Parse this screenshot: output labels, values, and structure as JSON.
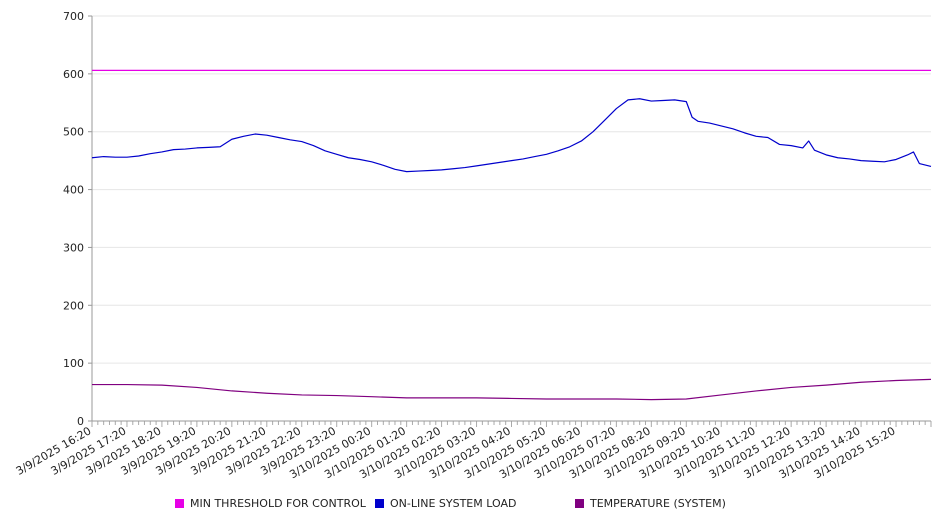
{
  "chart_data": {
    "type": "line",
    "title": "",
    "xlabel": "",
    "ylabel": "",
    "ylim": [
      0,
      700
    ],
    "yticks": [
      0,
      100,
      200,
      300,
      400,
      500,
      600,
      700
    ],
    "grid": true,
    "legend_position": "bottom",
    "x_start": "3/9/2025 16:20",
    "x_end": "3/10/2025 16:20",
    "x_tick_labels": [
      "3/9/2025 16:20",
      "3/9/2025 17:20",
      "3/9/2025 18:20",
      "3/9/2025 19:20",
      "3/9/2025 20:20",
      "3/9/2025 21:20",
      "3/9/2025 22:20",
      "3/9/2025 23:20",
      "3/10/2025 00:20",
      "3/10/2025 01:20",
      "3/10/2025 02:20",
      "3/10/2025 03:20",
      "3/10/2025 04:20",
      "3/10/2025 05:20",
      "3/10/2025 06:20",
      "3/10/2025 07:20",
      "3/10/2025 08:20",
      "3/10/2025 09:20",
      "3/10/2025 10:20",
      "3/10/2025 11:20",
      "3/10/2025 12:20",
      "3/10/2025 13:20",
      "3/10/2025 14:20",
      "3/10/2025 15:20"
    ],
    "series": [
      {
        "name": "MIN THRESHOLD FOR CONTROL",
        "color": "#e600e6",
        "points": [
          [
            "3/9/2025 16:20",
            606
          ],
          [
            "3/10/2025 16:20",
            606
          ]
        ]
      },
      {
        "name": "ON-LINE SYSTEM LOAD",
        "color": "#0000cc",
        "points": [
          [
            "3/9/2025 16:20",
            455
          ],
          [
            "3/9/2025 16:40",
            457
          ],
          [
            "3/9/2025 17:00",
            456
          ],
          [
            "3/9/2025 17:20",
            456
          ],
          [
            "3/9/2025 17:40",
            458
          ],
          [
            "3/9/2025 18:00",
            462
          ],
          [
            "3/9/2025 18:20",
            465
          ],
          [
            "3/9/2025 18:40",
            469
          ],
          [
            "3/9/2025 19:00",
            470
          ],
          [
            "3/9/2025 19:20",
            472
          ],
          [
            "3/9/2025 19:40",
            473
          ],
          [
            "3/9/2025 20:00",
            474
          ],
          [
            "3/9/2025 20:20",
            487
          ],
          [
            "3/9/2025 20:40",
            492
          ],
          [
            "3/9/2025 21:00",
            496
          ],
          [
            "3/9/2025 21:20",
            494
          ],
          [
            "3/9/2025 21:40",
            490
          ],
          [
            "3/9/2025 22:00",
            486
          ],
          [
            "3/9/2025 22:20",
            483
          ],
          [
            "3/9/2025 22:40",
            476
          ],
          [
            "3/9/2025 23:00",
            467
          ],
          [
            "3/9/2025 23:20",
            461
          ],
          [
            "3/9/2025 23:40",
            455
          ],
          [
            "3/10/2025 00:00",
            452
          ],
          [
            "3/10/2025 00:20",
            448
          ],
          [
            "3/10/2025 00:40",
            442
          ],
          [
            "3/10/2025 01:00",
            435
          ],
          [
            "3/10/2025 01:20",
            431
          ],
          [
            "3/10/2025 01:40",
            432
          ],
          [
            "3/10/2025 02:00",
            433
          ],
          [
            "3/10/2025 02:20",
            434
          ],
          [
            "3/10/2025 02:40",
            436
          ],
          [
            "3/10/2025 03:00",
            438
          ],
          [
            "3/10/2025 03:20",
            441
          ],
          [
            "3/10/2025 03:40",
            444
          ],
          [
            "3/10/2025 04:00",
            447
          ],
          [
            "3/10/2025 04:20",
            450
          ],
          [
            "3/10/2025 04:40",
            453
          ],
          [
            "3/10/2025 05:00",
            457
          ],
          [
            "3/10/2025 05:20",
            461
          ],
          [
            "3/10/2025 05:40",
            467
          ],
          [
            "3/10/2025 06:00",
            474
          ],
          [
            "3/10/2025 06:20",
            484
          ],
          [
            "3/10/2025 06:40",
            500
          ],
          [
            "3/10/2025 07:00",
            520
          ],
          [
            "3/10/2025 07:20",
            540
          ],
          [
            "3/10/2025 07:40",
            555
          ],
          [
            "3/10/2025 08:00",
            557
          ],
          [
            "3/10/2025 08:20",
            553
          ],
          [
            "3/10/2025 08:40",
            554
          ],
          [
            "3/10/2025 09:00",
            555
          ],
          [
            "3/10/2025 09:20",
            552
          ],
          [
            "3/10/2025 09:30",
            525
          ],
          [
            "3/10/2025 09:40",
            518
          ],
          [
            "3/10/2025 10:00",
            515
          ],
          [
            "3/10/2025 10:20",
            510
          ],
          [
            "3/10/2025 10:40",
            505
          ],
          [
            "3/10/2025 11:00",
            498
          ],
          [
            "3/10/2025 11:20",
            492
          ],
          [
            "3/10/2025 11:40",
            490
          ],
          [
            "3/10/2025 12:00",
            478
          ],
          [
            "3/10/2025 12:20",
            476
          ],
          [
            "3/10/2025 12:40",
            472
          ],
          [
            "3/10/2025 12:50",
            484
          ],
          [
            "3/10/2025 13:00",
            468
          ],
          [
            "3/10/2025 13:20",
            460
          ],
          [
            "3/10/2025 13:40",
            455
          ],
          [
            "3/10/2025 14:00",
            453
          ],
          [
            "3/10/2025 14:20",
            450
          ],
          [
            "3/10/2025 14:40",
            449
          ],
          [
            "3/10/2025 15:00",
            448
          ],
          [
            "3/10/2025 15:20",
            452
          ],
          [
            "3/10/2025 15:40",
            460
          ],
          [
            "3/10/2025 15:50",
            465
          ],
          [
            "3/10/2025 16:00",
            445
          ],
          [
            "3/10/2025 16:20",
            440
          ]
        ]
      },
      {
        "name": "TEMPERATURE (SYSTEM)",
        "color": "#800080",
        "points": [
          [
            "3/9/2025 16:20",
            63
          ],
          [
            "3/9/2025 17:20",
            63
          ],
          [
            "3/9/2025 18:20",
            62
          ],
          [
            "3/9/2025 19:20",
            58
          ],
          [
            "3/9/2025 20:20",
            52
          ],
          [
            "3/9/2025 21:20",
            48
          ],
          [
            "3/9/2025 22:20",
            45
          ],
          [
            "3/9/2025 23:20",
            44
          ],
          [
            "3/10/2025 00:20",
            42
          ],
          [
            "3/10/2025 01:20",
            40
          ],
          [
            "3/10/2025 02:20",
            40
          ],
          [
            "3/10/2025 03:20",
            40
          ],
          [
            "3/10/2025 04:20",
            39
          ],
          [
            "3/10/2025 05:20",
            38
          ],
          [
            "3/10/2025 06:20",
            38
          ],
          [
            "3/10/2025 07:20",
            38
          ],
          [
            "3/10/2025 08:20",
            37
          ],
          [
            "3/10/2025 09:20",
            38
          ],
          [
            "3/10/2025 10:20",
            45
          ],
          [
            "3/10/2025 11:20",
            52
          ],
          [
            "3/10/2025 12:20",
            58
          ],
          [
            "3/10/2025 13:20",
            62
          ],
          [
            "3/10/2025 14:20",
            67
          ],
          [
            "3/10/2025 15:20",
            70
          ],
          [
            "3/10/2025 16:20",
            72
          ]
        ]
      }
    ]
  }
}
